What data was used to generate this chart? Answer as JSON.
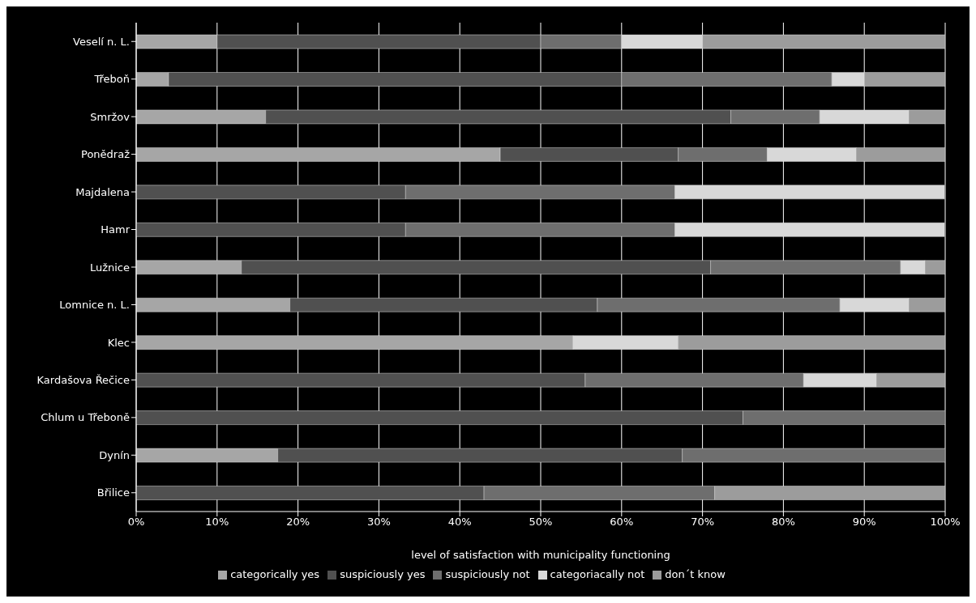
{
  "chart_data": {
    "type": "bar",
    "orientation": "horizontal",
    "stacked": true,
    "xlabel": "level of satisfaction with municipality functioning",
    "categories": [
      "Veselí n. L.",
      "Třeboň",
      "Smržov",
      "Ponědraž",
      "Majdalena",
      "Hamr",
      "Lužnice",
      "Lomnice n. L.",
      "Klec",
      "Kardašova Řečice",
      "Chlum u Třeboně",
      "Dynín",
      "Břilice"
    ],
    "series": [
      {
        "name": "categorically yes",
        "color": "#a6a6a6",
        "values": [
          10,
          4,
          16,
          45,
          0,
          0,
          13,
          19,
          54,
          0,
          0,
          17.5,
          0
        ]
      },
      {
        "name": "suspiciously yes",
        "color": "#505050",
        "values": [
          40,
          56,
          57.5,
          22,
          33.3,
          33.3,
          58,
          38,
          0,
          55.5,
          75,
          50,
          43
        ]
      },
      {
        "name": "suspiciously not",
        "color": "#6e6e6e",
        "values": [
          10,
          26,
          11,
          11,
          33.3,
          33.3,
          23.5,
          30,
          0,
          27,
          25,
          32.5,
          28.5
        ]
      },
      {
        "name": "categoriacally not",
        "color": "#d8d8d8",
        "values": [
          10,
          4,
          11,
          11,
          33.3,
          33.3,
          3,
          8.5,
          13,
          9,
          0,
          0,
          0
        ]
      },
      {
        "name": "don´t know",
        "color": "#9c9c9c",
        "values": [
          30,
          10,
          4.5,
          11,
          0,
          0,
          2.5,
          4.5,
          33,
          8.5,
          0,
          0,
          28.5
        ]
      }
    ],
    "xlim": [
      0,
      100
    ],
    "xticks": [
      {
        "value": 0,
        "label": "0%"
      },
      {
        "value": 10,
        "label": "10%"
      },
      {
        "value": 20,
        "label": "20%"
      },
      {
        "value": 30,
        "label": "30%"
      },
      {
        "value": 40,
        "label": "40%"
      },
      {
        "value": 50,
        "label": "50%"
      },
      {
        "value": 60,
        "label": "60%"
      },
      {
        "value": 70,
        "label": "70%"
      },
      {
        "value": 80,
        "label": "80%"
      },
      {
        "value": 90,
        "label": "90%"
      },
      {
        "value": 100,
        "label": "100%"
      }
    ],
    "grid": "x",
    "legend": "bottom"
  }
}
